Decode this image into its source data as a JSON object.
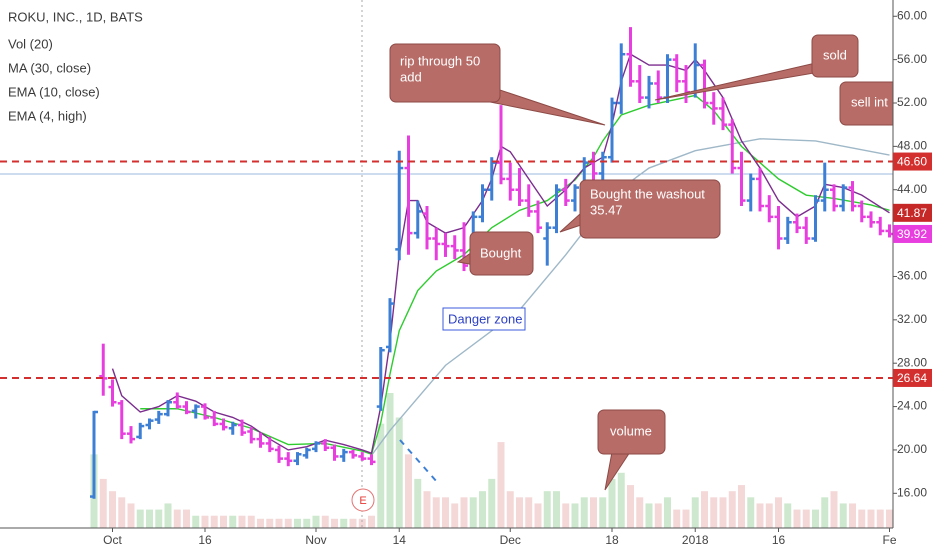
{
  "chart_data": {
    "type": "ohlc",
    "title": "ROKU, INC., 1D, BATS",
    "categories": [
      null,
      null,
      "Oct",
      null,
      null,
      null,
      null,
      null,
      null,
      null,
      null,
      null,
      "16",
      null,
      null,
      null,
      null,
      null,
      null,
      null,
      null,
      null,
      null,
      null,
      "Nov",
      null,
      null,
      null,
      null,
      null,
      null,
      null,
      null,
      "14",
      null,
      null,
      null,
      null,
      null,
      null,
      null,
      null,
      null,
      null,
      null,
      "Dec",
      null,
      null,
      null,
      null,
      null,
      null,
      null,
      null,
      null,
      null,
      "18",
      null,
      null,
      null,
      null,
      null,
      null,
      null,
      null,
      "2018",
      null,
      null,
      null,
      null,
      null,
      null,
      null,
      null,
      "16",
      null,
      null,
      null,
      null,
      null,
      null,
      null,
      null,
      null,
      null,
      null,
      "Fe"
    ],
    "open": [
      15.7,
      26.8,
      25.8,
      24.3,
      21.5,
      21.2,
      22.3,
      22.8,
      23.3,
      24.4,
      24.0,
      23.6,
      24.0,
      23.0,
      22.4,
      22.0,
      22.3,
      21.7,
      21.0,
      20.6,
      20.0,
      19.2,
      19.0,
      19.5,
      20.1,
      20.6,
      20.2,
      19.4,
      19.8,
      19.4,
      19.2,
      24.0,
      29.5,
      38.5,
      46.0,
      40.0,
      41.8,
      39.5,
      39.0,
      38.8,
      38.4,
      37.2,
      41.5,
      44.0,
      46.5,
      45.0,
      44.0,
      43.0,
      42.0,
      39.5,
      40.5,
      44.0,
      43.0,
      44.2,
      46.5,
      45.5,
      47.0,
      52.0,
      56.5,
      54.0,
      52.5,
      53.8,
      52.5,
      56.0,
      54.0,
      53.0,
      55.5,
      52.0,
      51.5,
      50.0,
      46.0,
      43.0,
      45.0,
      42.5,
      41.5,
      39.5,
      41.0,
      40.5,
      39.5,
      43.0,
      44.0,
      42.5,
      44.2,
      42.5,
      41.5,
      41.0,
      40.2
    ],
    "high": [
      23.6,
      29.8,
      26.5,
      24.6,
      22.2,
      22.5,
      22.9,
      23.6,
      24.6,
      25.3,
      24.5,
      24.2,
      24.3,
      23.6,
      22.9,
      22.6,
      22.8,
      22.1,
      21.6,
      21.2,
      20.4,
      19.8,
      19.8,
      20.2,
      20.8,
      21.0,
      20.5,
      20.1,
      20.0,
      19.8,
      19.6,
      29.5,
      34.0,
      47.6,
      49.0,
      43.0,
      42.5,
      40.5,
      40.0,
      39.8,
      41.0,
      42.0,
      44.5,
      47.0,
      51.8,
      46.5,
      46.0,
      44.5,
      43.0,
      41.0,
      44.5,
      45.0,
      44.5,
      47.0,
      47.5,
      47.5,
      52.5,
      57.5,
      59.0,
      55.5,
      54.5,
      55.0,
      56.5,
      56.5,
      55.5,
      57.5,
      56.0,
      53.0,
      52.5,
      50.5,
      47.5,
      45.5,
      46.0,
      43.5,
      42.5,
      41.5,
      41.8,
      41.5,
      43.5,
      46.5,
      44.5,
      44.5,
      44.8,
      43.0,
      42.0,
      41.5,
      40.8
    ],
    "low": [
      15.5,
      25.0,
      24.0,
      21.0,
      20.6,
      21.0,
      21.9,
      22.4,
      23.1,
      23.8,
      23.3,
      22.9,
      22.8,
      22.2,
      21.8,
      21.4,
      21.3,
      20.6,
      20.2,
      19.8,
      18.8,
      18.5,
      18.6,
      19.2,
      19.8,
      19.9,
      19.0,
      18.9,
      19.2,
      19.0,
      18.6,
      23.6,
      29.0,
      37.5,
      38.0,
      39.5,
      38.5,
      37.5,
      37.8,
      37.6,
      36.5,
      37.0,
      41.0,
      43.0,
      44.5,
      43.0,
      42.5,
      41.5,
      40.0,
      37.0,
      40.0,
      42.5,
      42.0,
      43.8,
      44.5,
      44.8,
      46.5,
      51.0,
      53.5,
      52.0,
      51.5,
      52.0,
      52.0,
      53.0,
      52.0,
      52.5,
      51.5,
      50.0,
      49.5,
      45.5,
      42.5,
      42.0,
      42.0,
      41.0,
      38.5,
      39.0,
      40.0,
      39.0,
      39.2,
      42.0,
      42.0,
      42.0,
      42.0,
      41.0,
      40.5,
      39.8,
      39.6
    ],
    "close": [
      23.5,
      26.6,
      24.4,
      21.5,
      21.0,
      22.2,
      22.7,
      23.3,
      24.4,
      24.0,
      23.5,
      24.0,
      23.0,
      22.4,
      22.1,
      22.3,
      21.6,
      21.0,
      20.6,
      20.1,
      19.2,
      19.0,
      19.6,
      20.0,
      20.6,
      20.2,
      19.4,
      19.8,
      19.5,
      19.2,
      18.9,
      29.2,
      33.5,
      46.0,
      40.0,
      42.0,
      39.5,
      39.0,
      38.8,
      38.4,
      37.0,
      41.5,
      44.0,
      46.5,
      45.0,
      44.0,
      43.0,
      42.0,
      40.5,
      40.5,
      44.0,
      43.0,
      44.2,
      46.5,
      45.5,
      47.0,
      52.0,
      56.5,
      54.0,
      52.5,
      53.8,
      52.5,
      56.0,
      54.0,
      53.0,
      55.5,
      52.0,
      51.5,
      50.0,
      46.0,
      43.0,
      45.0,
      42.5,
      41.5,
      39.5,
      41.0,
      40.5,
      39.5,
      43.0,
      44.0,
      42.5,
      44.2,
      42.5,
      41.5,
      41.0,
      40.2,
      39.92
    ],
    "up_color": "#3d7fd4",
    "down_color": "#e83ee0",
    "volume": {
      "name": "Vol (20)",
      "up_color": "#c8e6c9",
      "down_color": "#f3d4d4",
      "values": [
        12,
        8,
        6,
        5,
        4,
        3,
        3,
        3,
        4,
        3,
        3,
        2,
        2,
        2,
        2,
        2,
        2,
        2,
        1.5,
        1.5,
        1.5,
        1.5,
        1.5,
        1.5,
        2,
        2,
        1.5,
        1.5,
        1.5,
        1.5,
        2,
        17,
        22,
        18,
        12,
        8,
        6,
        5,
        5,
        4,
        5,
        5,
        6,
        8,
        14,
        6,
        5,
        5,
        4,
        6,
        6,
        4,
        4,
        5,
        5,
        5,
        8,
        9,
        7,
        5,
        4,
        4,
        5,
        3,
        3,
        5,
        6,
        5,
        5,
        6,
        7,
        5,
        4,
        4,
        5,
        4,
        3,
        3,
        3,
        5,
        6,
        4,
        4,
        3,
        3,
        3,
        3
      ]
    },
    "lines": [
      {
        "name": "MA (30, close)",
        "color": "#9fb8c8",
        "x": [
          30,
          32,
          38,
          46,
          51,
          56,
          60,
          65,
          72,
          78,
          86
        ],
        "values": [
          19.5,
          21.8,
          27.8,
          32.9,
          38,
          43.5,
          46,
          47.6,
          48.7,
          48.5,
          47.2
        ]
      },
      {
        "name": "EMA (10, close)",
        "color": "#2ecc2e",
        "x": [
          5,
          9,
          13,
          17,
          21,
          25,
          29,
          30,
          31,
          32,
          33,
          35,
          37,
          40,
          43,
          46,
          49,
          52,
          54,
          55,
          57,
          60,
          65,
          67,
          70,
          74,
          77,
          80,
          84,
          86
        ],
        "values": [
          23.8,
          23.8,
          23.0,
          22.0,
          20.5,
          20.6,
          19.9,
          19.6,
          22.5,
          27,
          31,
          34.7,
          36.5,
          38,
          40.5,
          42.1,
          43,
          44.9,
          47,
          48.5,
          50.9,
          51.8,
          52.7,
          51.3,
          48,
          45,
          43.5,
          43.2,
          42.6,
          42.1
        ]
      },
      {
        "name": "EMA (4, high)",
        "color": "#7b2d8e",
        "x": [
          2,
          3,
          5,
          7,
          9,
          11,
          13,
          15,
          17,
          19,
          21,
          23,
          25,
          27,
          29,
          30,
          31,
          32,
          33,
          34,
          35,
          36,
          38,
          40,
          42,
          43,
          44,
          45,
          47,
          49,
          51,
          53,
          55,
          56,
          57,
          58,
          60,
          62,
          64,
          65,
          66,
          68,
          70,
          72,
          74,
          76,
          78,
          79,
          81,
          83,
          86
        ],
        "values": [
          27.5,
          25,
          23.5,
          24,
          25,
          24.5,
          23.5,
          23,
          22.2,
          21,
          20,
          20.3,
          20.9,
          20.5,
          20,
          19.7,
          24,
          30,
          38,
          43,
          43,
          41,
          40,
          40.5,
          43,
          45,
          48,
          47.5,
          45,
          42.5,
          44,
          46,
          47,
          50,
          54,
          56.5,
          55.5,
          55.5,
          55,
          56,
          55,
          52.5,
          48.5,
          46,
          43,
          41.5,
          42.5,
          44.5,
          44.2,
          43.5,
          41.87
        ]
      }
    ],
    "ylim": [
      12.8,
      61.5
    ],
    "yticks": [
      {
        "value": 16,
        "label": "16.00"
      },
      {
        "value": 20,
        "label": "20.00"
      },
      {
        "value": 24,
        "label": "24.00"
      },
      {
        "value": 28,
        "label": "28.00"
      },
      {
        "value": 32,
        "label": "32.00"
      },
      {
        "value": 36,
        "label": "36.00"
      },
      {
        "value": 40,
        "label": "40.00"
      },
      {
        "value": 44,
        "label": "44.00"
      },
      {
        "value": 48,
        "label": "48.00"
      },
      {
        "value": 52,
        "label": "52.00"
      },
      {
        "value": 56,
        "label": "56.00"
      },
      {
        "value": 60,
        "label": "60.00"
      }
    ],
    "hlines": [
      {
        "value": 46.6,
        "label": "46.60",
        "color": "#d32f2f"
      },
      {
        "value": 26.64,
        "label": "26.64",
        "color": "#d32f2f"
      }
    ],
    "price_labels": [
      {
        "value": 41.87,
        "label": "41.87",
        "color": "#c62828"
      },
      {
        "value": 39.92,
        "label": "39.92",
        "color": "#e83ee0"
      }
    ],
    "annotations": [
      [
        "rip through 50",
        "add"
      ],
      [
        "sold"
      ],
      [
        "sell int"
      ],
      [
        "Bought the washout",
        "35.47"
      ],
      [
        "Bought"
      ],
      [
        "Danger zone"
      ],
      [
        "volume"
      ]
    ]
  }
}
